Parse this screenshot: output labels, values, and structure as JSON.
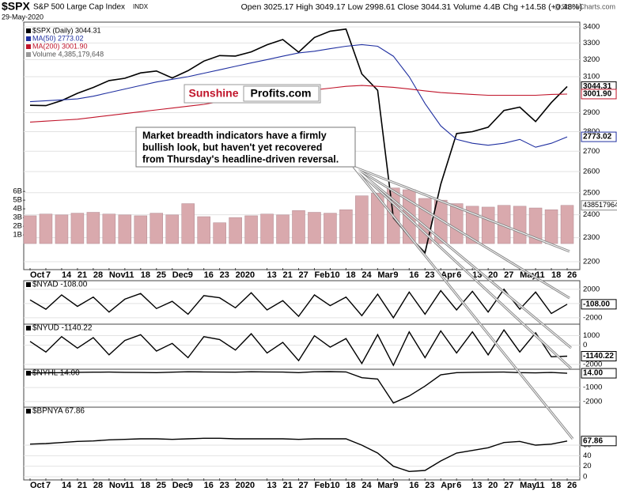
{
  "header": {
    "symbol": "$SPX",
    "name": "S&P 500 Large Cap Index",
    "exchange": "INDX",
    "date": "29-May-2020",
    "quote": "Open 3025.17 High 3049.17 Low 2998.61 Close 3044.31 Volume 4.4B Chg +14.58 (+0.48%)",
    "credit": "@StockCharts.com"
  },
  "chart_data": [
    {
      "type": "line",
      "log": true,
      "categories": [
        "Oct",
        "7",
        "14",
        "21",
        "28",
        "Nov",
        "11",
        "18",
        "25",
        "Dec",
        "9",
        "16",
        "23",
        "2020",
        null,
        "13",
        "21",
        "27",
        "Feb",
        "10",
        "18",
        "24",
        "Mar",
        "9",
        "16",
        "23",
        "Apr",
        "6",
        "13",
        "20",
        "27",
        "May",
        "11",
        "18",
        "26"
      ],
      "series": [
        {
          "name": "$SPX (Daily) 3044.31",
          "color": "#000000",
          "last_label": "3044.31",
          "values": [
            2940,
            2938,
            2966,
            3006,
            3039,
            3078,
            3091,
            3122,
            3133,
            3093,
            3135,
            3191,
            3224,
            3221,
            3246,
            3289,
            3321,
            3244,
            3334,
            3373,
            3386,
            3116,
            3023,
            2386,
            2305,
            2237,
            2540,
            2790,
            2800,
            2823,
            2912,
            2930,
            2853,
            2955,
            3044.31
          ]
        },
        {
          "name": "MA(50) 2773.02",
          "color": "#1f2fa0",
          "last_label": "2773.02",
          "values": [
            2960,
            2965,
            2970,
            2975,
            2990,
            3010,
            3030,
            3050,
            3070,
            3085,
            3100,
            3120,
            3140,
            3160,
            3180,
            3200,
            3220,
            3240,
            3250,
            3265,
            3280,
            3290,
            3280,
            3220,
            3100,
            2950,
            2830,
            2760,
            2740,
            2730,
            2740,
            2760,
            2720,
            2740,
            2773.02
          ]
        },
        {
          "name": "MA(200) 3001.90",
          "color": "#c0142a",
          "last_label": "3001.90",
          "values": [
            2850,
            2855,
            2860,
            2865,
            2875,
            2885,
            2895,
            2905,
            2915,
            2925,
            2935,
            2945,
            2960,
            2975,
            2985,
            2995,
            3005,
            3015,
            3025,
            3035,
            3045,
            3050,
            3045,
            3040,
            3030,
            3020,
            3010,
            3005,
            3000,
            2995,
            2995,
            2995,
            2995,
            3000,
            3001.9
          ]
        }
      ],
      "ylim": [
        2200,
        3400
      ],
      "yticks": [
        2200,
        2300,
        2400,
        2500,
        2600,
        2700,
        2800,
        2900,
        3100,
        3200,
        3300,
        3400
      ],
      "volume": {
        "name": "Volume 4,385,179,648",
        "color": "#d9a9ad",
        "last_label": "4385179648",
        "values": [
          3.2,
          3.4,
          3.3,
          3.5,
          3.6,
          3.4,
          3.3,
          3.2,
          3.5,
          3.3,
          4.6,
          3.1,
          2.4,
          3.0,
          3.2,
          3.4,
          3.3,
          3.8,
          3.6,
          3.5,
          3.9,
          5.5,
          5.8,
          6.4,
          6.2,
          5.2,
          5.0,
          4.6,
          4.3,
          4.2,
          4.4,
          4.3,
          4.1,
          3.9,
          4.4
        ],
        "ylim": [
          -3,
          25.5
        ],
        "yticks": [
          {
            "value": 1,
            "label": "1B"
          },
          {
            "value": 2,
            "label": "2B"
          },
          {
            "value": 3,
            "label": "3B"
          },
          {
            "value": 4,
            "label": "4B"
          },
          {
            "value": 5,
            "label": "5B"
          },
          {
            "value": 6,
            "label": "6B"
          }
        ]
      },
      "annotation": [
        "Market breadth indicators have a firmly",
        "bullish look, but haven't yet recovered",
        "from Thursday's headline-driven reversal."
      ],
      "logo": [
        "Sunshine",
        "Profits.com"
      ]
    },
    {
      "type": "line",
      "title": "$NYAD -108.00",
      "last_label": "-108.00",
      "color": "#000000",
      "values": [
        500,
        -800,
        1200,
        -400,
        900,
        -1200,
        600,
        1400,
        -700,
        300,
        -1500,
        1100,
        800,
        -600,
        1500,
        -900,
        400,
        -1800,
        1200,
        -300,
        900,
        -1700,
        1300,
        -2000,
        1600,
        -1500,
        1800,
        -900,
        1700,
        -1200,
        2000,
        -800,
        1600,
        -1400,
        -108
      ],
      "ylim": [
        -2900,
        3200
      ],
      "yticks": [
        -2000,
        0,
        2000
      ]
    },
    {
      "type": "line",
      "title": "$NYUD -1140.22",
      "last_label": "-1140.22",
      "color": "#000000",
      "values": [
        400,
        -700,
        900,
        -300,
        800,
        -1000,
        500,
        1100,
        -600,
        200,
        -1300,
        900,
        600,
        -500,
        1200,
        -800,
        300,
        -1600,
        1000,
        -200,
        700,
        -1900,
        1100,
        -2100,
        1400,
        -1300,
        1500,
        -800,
        1400,
        -1000,
        1600,
        -700,
        1300,
        -1200,
        -1140.22
      ],
      "ylim": [
        -2500,
        2200
      ],
      "yticks": [
        -2000,
        0,
        1000
      ]
    },
    {
      "type": "line",
      "title": "$NYHL 14.00",
      "last_label": "14.00",
      "color": "#000000",
      "values": [
        50,
        40,
        60,
        80,
        90,
        100,
        80,
        70,
        60,
        90,
        120,
        110,
        100,
        90,
        120,
        110,
        100,
        60,
        120,
        130,
        110,
        -300,
        -400,
        -2100,
        -1600,
        -900,
        -100,
        60,
        80,
        90,
        100,
        60,
        40,
        70,
        14
      ],
      "ylim": [
        -2400,
        300
      ],
      "yticks": [
        -2000,
        -1000
      ]
    },
    {
      "type": "line",
      "title": "$BPNYA 67.86",
      "last_label": "67.86",
      "color": "#000000",
      "values": [
        62,
        63,
        65,
        67,
        68,
        70,
        71,
        72,
        72,
        71,
        72,
        73,
        73,
        72,
        72,
        72,
        72,
        71,
        72,
        72,
        72,
        60,
        45,
        20,
        10,
        12,
        30,
        45,
        50,
        55,
        65,
        67,
        60,
        62,
        67.86
      ],
      "ylim": [
        -6,
        132
      ],
      "yticks": [
        0,
        20,
        40,
        60
      ]
    }
  ]
}
